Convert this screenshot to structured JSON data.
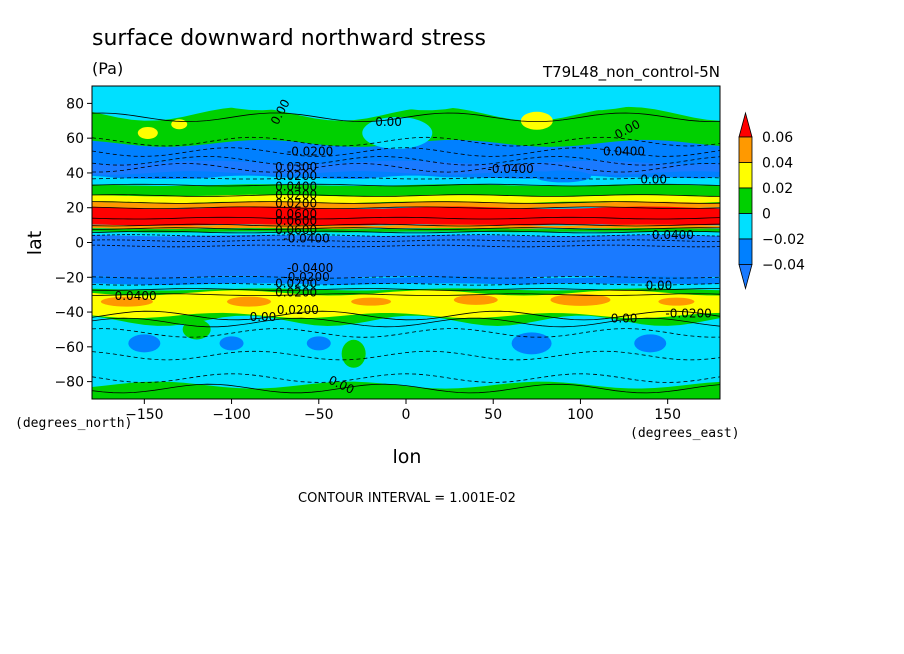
{
  "chart_data": {
    "type": "heatmap",
    "title": "surface downward northward stress",
    "units": "(Pa)",
    "run_label": "T79L48_non_control-5N",
    "xlabel": "lon",
    "ylabel": "lat",
    "x_unit_label": "(degrees_east)",
    "y_unit_label": "(degrees_north)",
    "xlim": [
      -180,
      180
    ],
    "ylim": [
      -90,
      90
    ],
    "x_ticks": [
      -150,
      -100,
      -50,
      0,
      50,
      100,
      150
    ],
    "y_ticks": [
      -80,
      -60,
      -40,
      -20,
      0,
      20,
      40,
      60,
      80
    ],
    "x_tick_labels": [
      "−150",
      "−100",
      "−50",
      "0",
      "50",
      "100",
      "150"
    ],
    "y_tick_labels": [
      "−80",
      "−60",
      "−40",
      "−20",
      "0",
      "20",
      "40",
      "60",
      "80"
    ],
    "contour_interval_text": "CONTOUR INTERVAL = 1.001E-02",
    "colorbar": {
      "levels": [
        -0.04,
        -0.02,
        0,
        0.02,
        0.04,
        0.06
      ],
      "labels": [
        "−0.04",
        "−0.02",
        "0",
        "0.02",
        "0.04",
        "0.06"
      ],
      "colors": [
        "#1a7aff",
        "#0080ff",
        "#00e0ff",
        "#00d000",
        "#ffff00",
        "#ff9900",
        "#ff0000"
      ]
    },
    "zonal_bands": [
      {
        "lat_from": 90,
        "lat_to": 72,
        "value": "-0.02 to 0"
      },
      {
        "lat_from": 72,
        "lat_to": 52,
        "value": "0 to 0.02"
      },
      {
        "lat_from": 52,
        "lat_to": 38,
        "value": "-0.04 to -0.02"
      },
      {
        "lat_from": 33,
        "lat_to": 22,
        "value": "0.02 to 0.04"
      },
      {
        "lat_from": 20,
        "lat_to": 10,
        "value": "> 0.06"
      },
      {
        "lat_from": 5,
        "lat_to": -20,
        "value": "< -0.04"
      },
      {
        "lat_from": -28,
        "lat_to": -42,
        "value": "0.02 to 0.04"
      },
      {
        "lat_from": -45,
        "lat_to": -90,
        "value": "-0.02 to 0"
      }
    ],
    "contour_labels": [
      {
        "text": "0.00",
        "lon": -70,
        "lat": 74,
        "angle": -62
      },
      {
        "text": "0.00",
        "lon": -10,
        "lat": 67,
        "angle": 0
      },
      {
        "text": "0.00",
        "lon": 128,
        "lat": 63,
        "angle": -28
      },
      {
        "text": "0.0400",
        "lon": 125,
        "lat": 50,
        "angle": 0
      },
      {
        "text": "-0.0200",
        "lon": -55,
        "lat": 50,
        "angle": 0
      },
      {
        "text": "-0.0400",
        "lon": 60,
        "lat": 40,
        "angle": 0
      },
      {
        "text": "0.00",
        "lon": 142,
        "lat": 34,
        "angle": 0
      },
      {
        "text": "0.0300",
        "lon": -63,
        "lat": 41,
        "angle": 0
      },
      {
        "text": "0.0200",
        "lon": -63,
        "lat": 36,
        "angle": 0
      },
      {
        "text": "0.0400",
        "lon": -63,
        "lat": 30,
        "angle": 0
      },
      {
        "text": "0.0200",
        "lon": -63,
        "lat": 25,
        "angle": 0
      },
      {
        "text": "0.0200",
        "lon": -63,
        "lat": 20,
        "angle": 0
      },
      {
        "text": "0.0600",
        "lon": -63,
        "lat": 14,
        "angle": 0
      },
      {
        "text": "0.0600",
        "lon": -63,
        "lat": 10,
        "angle": 0
      },
      {
        "text": "0.0600",
        "lon": -63,
        "lat": 5,
        "angle": 0
      },
      {
        "text": "-0.0400",
        "lon": -57,
        "lat": 0,
        "angle": 0
      },
      {
        "text": "0.0400",
        "lon": 153,
        "lat": 2,
        "angle": 0
      },
      {
        "text": "-0.0400",
        "lon": -55,
        "lat": -17,
        "angle": 0
      },
      {
        "text": "-0.0200",
        "lon": -57,
        "lat": -22,
        "angle": 0
      },
      {
        "text": "0.0200",
        "lon": -63,
        "lat": -26,
        "angle": 0
      },
      {
        "text": "0.0200",
        "lon": -63,
        "lat": -31,
        "angle": 0
      },
      {
        "text": "0.0400",
        "lon": -155,
        "lat": -33,
        "angle": 0
      },
      {
        "text": "0.00",
        "lon": 145,
        "lat": -27,
        "angle": 0
      },
      {
        "text": "0.0200",
        "lon": -62,
        "lat": -41,
        "angle": 0
      },
      {
        "text": "0.00",
        "lon": -82,
        "lat": -45,
        "angle": 0
      },
      {
        "text": "0.00",
        "lon": 125,
        "lat": -46,
        "angle": 0
      },
      {
        "text": "-0.0200",
        "lon": 162,
        "lat": -43,
        "angle": 0
      },
      {
        "text": "0.00",
        "lon": -38,
        "lat": -84,
        "angle": 25
      }
    ]
  }
}
